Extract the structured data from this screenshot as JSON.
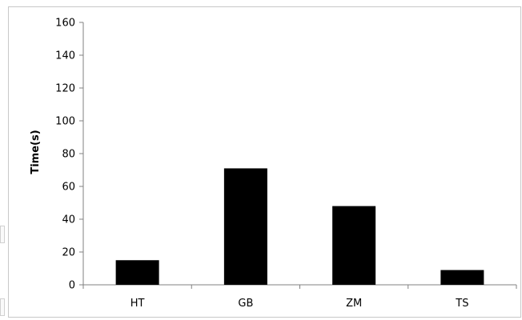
{
  "chart_data": {
    "type": "bar",
    "categories": [
      "HT",
      "GB",
      "ZM",
      "TS"
    ],
    "values": [
      15,
      71,
      48,
      9
    ],
    "title": "",
    "xlabel": "",
    "ylabel": "Time(s)",
    "ylim": [
      0,
      160
    ],
    "yticks": [
      0,
      20,
      40,
      60,
      80,
      100,
      120,
      140,
      160
    ],
    "grid": false,
    "legend": "none",
    "bar_color": "#000000"
  }
}
